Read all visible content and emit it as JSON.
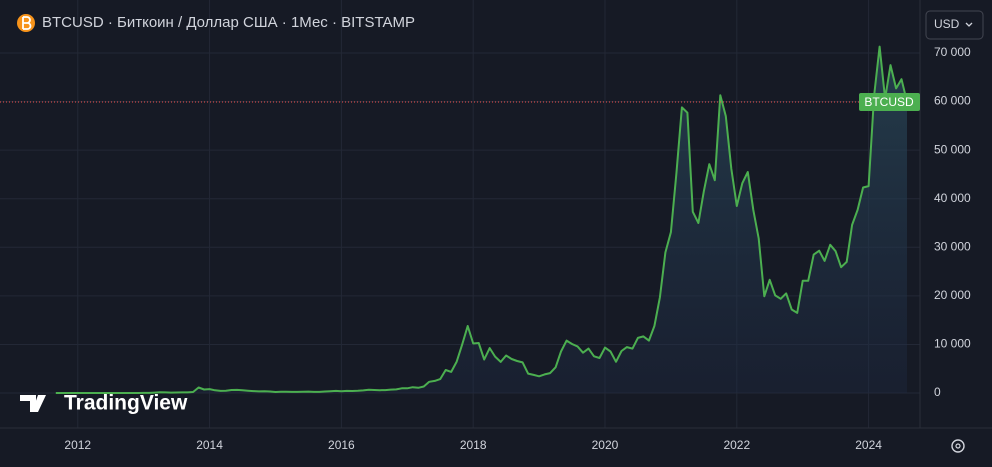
{
  "chart_data": {
    "type": "line",
    "title": "BTCUSD · Биткоин / Доллар США · 1Мес · BITSTAMP",
    "currency": "USD",
    "watermark": "TradingView",
    "x": [
      2011.667,
      2011.75,
      2011.833,
      2011.917,
      2012,
      2012.083,
      2012.167,
      2012.25,
      2012.333,
      2012.417,
      2012.5,
      2012.583,
      2012.667,
      2012.75,
      2012.833,
      2012.917,
      2013,
      2013.083,
      2013.167,
      2013.25,
      2013.333,
      2013.417,
      2013.5,
      2013.583,
      2013.667,
      2013.75,
      2013.833,
      2013.917,
      2014,
      2014.083,
      2014.167,
      2014.25,
      2014.333,
      2014.417,
      2014.5,
      2014.583,
      2014.667,
      2014.75,
      2014.833,
      2014.917,
      2015,
      2015.083,
      2015.167,
      2015.25,
      2015.333,
      2015.417,
      2015.5,
      2015.583,
      2015.667,
      2015.75,
      2015.833,
      2015.917,
      2016,
      2016.083,
      2016.167,
      2016.25,
      2016.333,
      2016.417,
      2016.5,
      2016.583,
      2016.667,
      2016.75,
      2016.833,
      2016.917,
      2017,
      2017.083,
      2017.167,
      2017.25,
      2017.333,
      2017.417,
      2017.5,
      2017.583,
      2017.667,
      2017.75,
      2017.833,
      2017.917,
      2018,
      2018.083,
      2018.167,
      2018.25,
      2018.333,
      2018.417,
      2018.5,
      2018.583,
      2018.667,
      2018.75,
      2018.833,
      2018.917,
      2019,
      2019.083,
      2019.167,
      2019.25,
      2019.333,
      2019.417,
      2019.5,
      2019.583,
      2019.667,
      2019.75,
      2019.833,
      2019.917,
      2020,
      2020.083,
      2020.167,
      2020.25,
      2020.333,
      2020.417,
      2020.5,
      2020.583,
      2020.667,
      2020.75,
      2020.833,
      2020.917,
      2021,
      2021.083,
      2021.167,
      2021.25,
      2021.333,
      2021.417,
      2021.5,
      2021.583,
      2021.667,
      2021.75,
      2021.833,
      2021.917,
      2022,
      2022.083,
      2022.167,
      2022.25,
      2022.333,
      2022.417,
      2022.5,
      2022.583,
      2022.667,
      2022.75,
      2022.833,
      2022.917,
      2023,
      2023.083,
      2023.167,
      2023.25,
      2023.333,
      2023.417,
      2023.5,
      2023.583,
      2023.667,
      2023.75,
      2023.833,
      2023.917,
      2024,
      2024.083,
      2024.167,
      2024.25,
      2024.333,
      2024.417,
      2024.5,
      2024.583
    ],
    "series": [
      {
        "name": "BTCUSD",
        "color": "#4caf50",
        "values": [
          5,
          3,
          3,
          5,
          6,
          5,
          5,
          5,
          5,
          7,
          9,
          10,
          12,
          11,
          13,
          14,
          20,
          33,
          93,
          139,
          129,
          97,
          106,
          135,
          133,
          204,
          1130,
          732,
          805,
          550,
          445,
          447,
          630,
          640,
          585,
          478,
          388,
          337,
          378,
          320,
          217,
          254,
          244,
          236,
          230,
          264,
          284,
          230,
          236,
          314,
          377,
          430,
          368,
          437,
          416,
          448,
          531,
          673,
          624,
          575,
          609,
          700,
          745,
          964,
          970,
          1190,
          1080,
          1350,
          2300,
          2500,
          2870,
          4740,
          4340,
          6470,
          10000,
          13800,
          10200,
          10300,
          6900,
          9250,
          7500,
          6400,
          7730,
          7000,
          6600,
          6300,
          4000,
          3740,
          3450,
          3830,
          4100,
          5300,
          8550,
          10800,
          10100,
          9600,
          8300,
          9150,
          7550,
          7200,
          9350,
          8550,
          6430,
          8650,
          9450,
          9150,
          11350,
          11650,
          10800,
          13800,
          19700,
          28950,
          33100,
          45200,
          58800,
          57700,
          37300,
          35000,
          41500,
          47100,
          43800,
          61300,
          57000,
          46200,
          38500,
          43200,
          45500,
          37700,
          31800,
          19900,
          23300,
          20100,
          19400,
          20500,
          17200,
          16500,
          23100,
          23100,
          28500,
          29300,
          27200,
          30500,
          29200,
          25900,
          27000,
          34600,
          37700,
          42300,
          42600,
          61200,
          71300,
          60600,
          67500,
          62700,
          64600,
          59900
        ]
      }
    ],
    "xlim": [
      2010.82,
      2024.78
    ],
    "xticks": [
      2012,
      2014,
      2016,
      2018,
      2020,
      2022,
      2024
    ],
    "ylim": [
      -7200,
      80900
    ],
    "yticks": [
      0,
      {
        "value": 10000,
        "label": "10 000"
      },
      {
        "value": 20000,
        "label": "20 000"
      },
      {
        "value": 30000,
        "label": "30 000"
      },
      {
        "value": 40000,
        "label": "40 000"
      },
      {
        "value": 50000,
        "label": "50 000"
      },
      {
        "value": 60000,
        "label": "60 000"
      },
      {
        "value": 70000,
        "label": "70 000"
      }
    ],
    "grid": true
  }
}
